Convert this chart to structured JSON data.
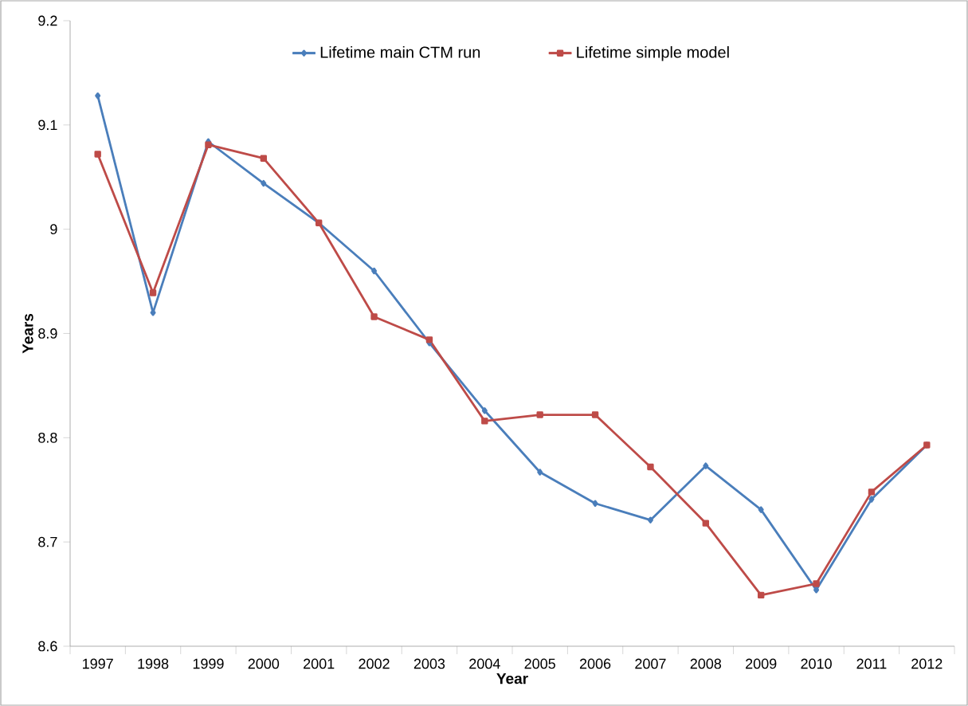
{
  "chart_data": {
    "type": "line",
    "xlabel": "Year",
    "ylabel": "Years",
    "categories": [
      "1997",
      "1998",
      "1999",
      "2000",
      "2001",
      "2002",
      "2003",
      "2004",
      "2005",
      "2006",
      "2007",
      "2008",
      "2009",
      "2010",
      "2011",
      "2012"
    ],
    "series": [
      {
        "name": "Lifetime main CTM run",
        "color": "#4a7ebb",
        "marker": "diamond",
        "values": [
          9.128,
          8.92,
          9.084,
          9.044,
          9.006,
          8.96,
          8.891,
          8.826,
          8.767,
          8.737,
          8.721,
          8.773,
          8.731,
          8.654,
          8.741,
          8.793
        ]
      },
      {
        "name": "Lifetime simple model",
        "color": "#be4b48",
        "marker": "square",
        "values": [
          9.072,
          8.939,
          9.081,
          9.068,
          9.006,
          8.916,
          8.894,
          8.816,
          8.822,
          8.822,
          8.772,
          8.718,
          8.649,
          8.66,
          8.748,
          8.793
        ]
      }
    ],
    "ylim": [
      8.6,
      9.2
    ],
    "yticks": [
      8.6,
      8.7,
      8.8,
      8.9,
      9,
      9.1,
      9.2
    ],
    "grid": false,
    "legend": "top",
    "line_style": "solid"
  }
}
